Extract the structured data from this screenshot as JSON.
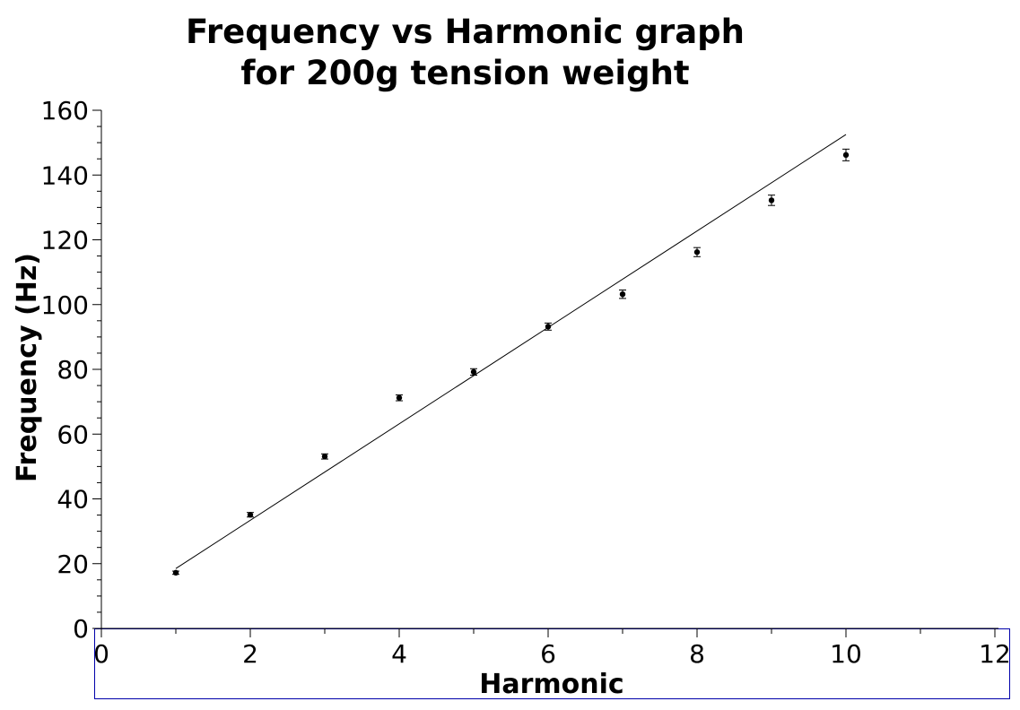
{
  "chart_data": {
    "type": "scatter",
    "title": "Frequency vs Harmonic graph",
    "subtitle": "for 200g tension weight",
    "xlabel": "Harmonic",
    "ylabel": "Frequency (Hz)",
    "xlim": [
      0,
      12
    ],
    "ylim": [
      0,
      160
    ],
    "xticks": [
      0,
      2,
      4,
      6,
      8,
      10,
      12
    ],
    "yticks": [
      0,
      20,
      40,
      60,
      80,
      100,
      120,
      140,
      160
    ],
    "grid": false,
    "series": [
      {
        "x": [
          1,
          2,
          3,
          4,
          5,
          6,
          7,
          8,
          9,
          10
        ],
        "y": [
          17.2,
          35.1,
          53.1,
          71.2,
          79.2,
          93.2,
          103.2,
          116.2,
          132.2,
          146.2
        ],
        "yerr": [
          0.5,
          0.7,
          0.8,
          0.9,
          1.0,
          1.1,
          1.3,
          1.4,
          1.6,
          1.8
        ]
      }
    ],
    "trendline": {
      "x": [
        1,
        10
      ],
      "y": [
        18.5,
        152.5
      ]
    },
    "colors": {
      "markers": "#000000",
      "line": "#000000",
      "frame": "#0000aa"
    }
  }
}
